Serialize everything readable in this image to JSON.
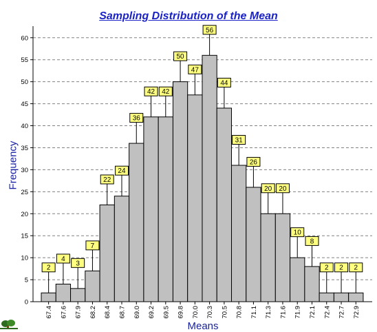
{
  "chart_data": {
    "type": "bar",
    "title": "Sampling Distribution of the Mean",
    "xlabel": "Means",
    "ylabel": "Frequency",
    "categories": [
      "67.4",
      "67.6",
      "67.9",
      "68.2",
      "68.4",
      "68.7",
      "69.0",
      "69.2",
      "69.5",
      "69.8",
      "70.0",
      "70.3",
      "70.5",
      "70.8",
      "71.1",
      "71.3",
      "71.6",
      "71.9",
      "72.1",
      "72.4",
      "72.7",
      "72.9"
    ],
    "values": [
      2,
      4,
      3,
      7,
      22,
      24,
      36,
      42,
      42,
      50,
      47,
      56,
      44,
      31,
      26,
      20,
      20,
      10,
      8,
      2,
      2,
      2
    ],
    "yticks": [
      "0",
      "5",
      "10",
      "15",
      "20",
      "25",
      "30",
      "35",
      "40",
      "45",
      "50",
      "55",
      "60"
    ],
    "ylim": [
      0,
      62
    ],
    "grid": "horizontal-dashed",
    "data_labels": true,
    "colors": {
      "bar_fill": "#c0c0c0",
      "bar_stroke": "#000000",
      "label_fill": "#ffff80",
      "title": "#1a22c8",
      "axis_title": "#1a22a0",
      "grid": "#808080"
    }
  },
  "logo": {
    "icon": "tree-logo-icon"
  }
}
